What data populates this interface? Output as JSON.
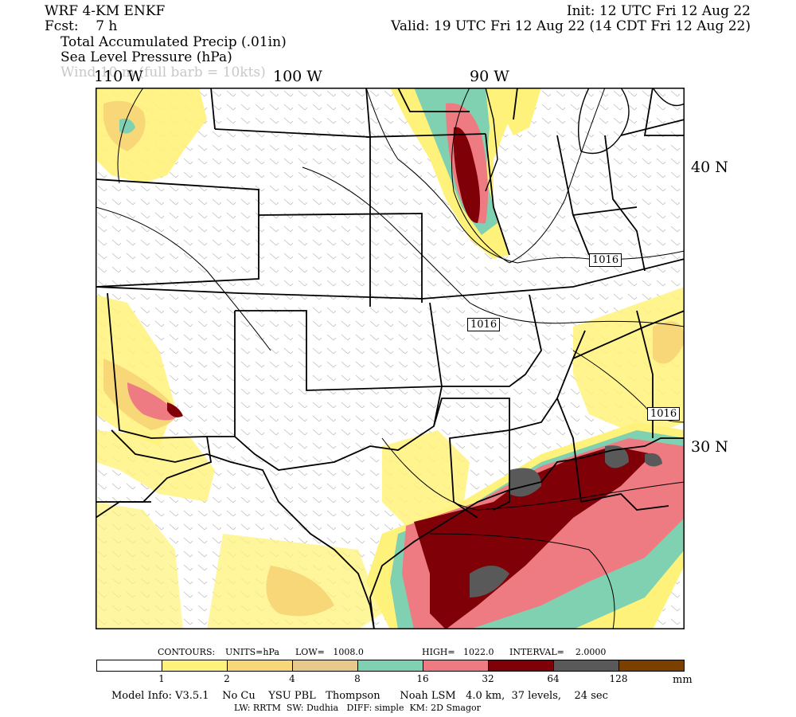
{
  "header": {
    "model": "WRF 4-KM ENKF",
    "fcst": "Fcst:    7 h",
    "init": "Init: 12 UTC Fri 12 Aug 22",
    "valid": "Valid: 19 UTC Fri 12 Aug 22 (14 CDT Fri 12 Aug 22)",
    "fields": [
      "Total Accumulated Precip (.01in)",
      "Sea Level Pressure (hPa)",
      "Wind 10 m (full barb = 10kts)"
    ]
  },
  "map_labels": {
    "lon": [
      "110 W",
      "100 W",
      "90 W"
    ],
    "lat": [
      "40 N",
      "30 N"
    ],
    "isobars": [
      "1016",
      "1016",
      "1016"
    ]
  },
  "contours": {
    "label": "CONTOURS:",
    "units": "UNITS=hPa",
    "low": "LOW=   1008.0",
    "high": "HIGH=   1022.0",
    "interval": "INTERVAL=    2.0000"
  },
  "colorbar": {
    "colors": [
      "#ffffff",
      "#fff27a",
      "#f7d777",
      "#e8c98b",
      "#7fd1b2",
      "#ee7b82",
      "#7f0007",
      "#595959",
      "#7b3f00"
    ],
    "ticks": [
      "1",
      "2",
      "4",
      "8",
      "16",
      "32",
      "64",
      "128"
    ],
    "units": "mm"
  },
  "footer": {
    "line1": "Model Info: V3.5.1    No Cu    YSU PBL   Thompson      Noah LSM   4.0 km,  37 levels,    24 sec",
    "line2": "LW: RRTM  SW: Dudhia   DIFF: simple  KM: 2D Smagor"
  }
}
